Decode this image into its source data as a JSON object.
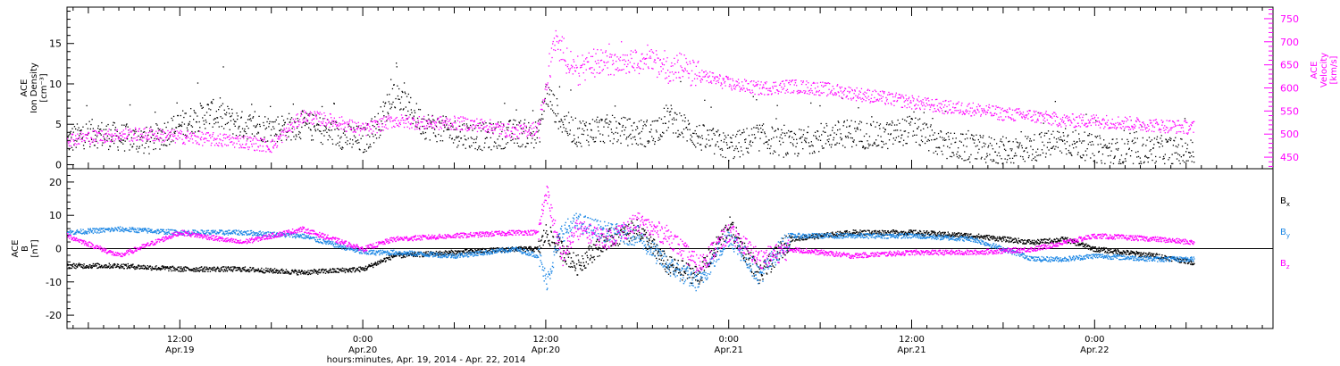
{
  "colors": {
    "black": "#000000",
    "magenta": "#ff00ff",
    "blue": "#1e88e5",
    "bg": "#ffffff"
  },
  "xaxis": {
    "title": "hours:minutes, Apr. 19, 2014 - Apr. 22, 2014",
    "ticks": [
      {
        "hour": 12,
        "line1": "12:00",
        "line2": "Apr.19"
      },
      {
        "hour": 24,
        "line1": "0:00",
        "line2": "Apr.20"
      },
      {
        "hour": 36,
        "line1": "12:00",
        "line2": "Apr.20"
      },
      {
        "hour": 48,
        "line1": "0:00",
        "line2": "Apr.21"
      },
      {
        "hour": 60,
        "line1": "12:00",
        "line2": "Apr.21"
      },
      {
        "hour": 72,
        "line1": "0:00",
        "line2": "Apr.22"
      }
    ]
  },
  "chart_data": [
    {
      "type": "scatter",
      "panel": "top",
      "xrange_hours": [
        4.6,
        83.7
      ],
      "left_axis": {
        "label_lines": [
          "ACE",
          "Ion Density",
          "[cm⁻³]"
        ],
        "ylim": [
          -0.5,
          19.5
        ],
        "ticks": [
          "0",
          "5",
          "10",
          "15"
        ],
        "tick_values": [
          0,
          5,
          10,
          15
        ]
      },
      "right_axis": {
        "label_lines": [
          "ACE",
          "Velocity",
          "[km/s]"
        ],
        "ylim": [
          425,
          775
        ],
        "ticks": [
          "450",
          "500",
          "550",
          "600",
          "650",
          "700",
          "750"
        ],
        "tick_values": [
          450,
          500,
          550,
          600,
          650,
          700,
          750
        ]
      },
      "series": [
        {
          "color": "black",
          "x_hours": [
            4.6,
            6,
            8,
            10,
            12,
            14,
            16,
            18,
            20,
            22,
            24,
            25,
            26,
            28,
            30,
            32,
            34,
            35.5,
            36,
            37,
            38,
            40,
            42,
            43,
            44,
            46,
            48,
            50,
            52,
            54,
            56,
            58,
            60,
            62,
            64,
            66,
            68,
            70,
            72,
            74,
            76,
            78.5
          ],
          "values": [
            3,
            4,
            3.5,
            3,
            5,
            6.5,
            5,
            4.5,
            5,
            4,
            3,
            5,
            9,
            5,
            4,
            3.5,
            4,
            3.8,
            9,
            5.5,
            4,
            4.5,
            4,
            4,
            6,
            3.5,
            2.2,
            3.5,
            2.5,
            3.5,
            4,
            3.5,
            4.5,
            2.5,
            2,
            1.8,
            2.2,
            3,
            2,
            1.5,
            2,
            1.5
          ]
        },
        {
          "color": "magenta",
          "x_hours": [
            4.6,
            8,
            10,
            12,
            14,
            16,
            18,
            20,
            22,
            24,
            26,
            28,
            30,
            32,
            34,
            35.5,
            36,
            36.5,
            38,
            40,
            42,
            43,
            44,
            45,
            46,
            48,
            50,
            52,
            54,
            56,
            58,
            60,
            62,
            64,
            66,
            68,
            70,
            72,
            74,
            76,
            78.5
          ],
          "values": [
            490,
            500,
            500,
            495,
            490,
            485,
            475,
            540,
            530,
            510,
            530,
            525,
            525,
            520,
            505,
            515,
            600,
            700,
            640,
            660,
            665,
            660,
            645,
            640,
            630,
            610,
            600,
            605,
            600,
            590,
            580,
            570,
            560,
            555,
            545,
            540,
            530,
            530,
            525,
            520,
            515
          ]
        }
      ]
    },
    {
      "type": "scatter",
      "panel": "bottom",
      "xrange_hours": [
        4.6,
        83.7
      ],
      "left_axis": {
        "label_lines": [
          "ACE",
          "B",
          "[nT]"
        ],
        "ylim": [
          -24,
          24
        ],
        "ticks": [
          "-20",
          "-10",
          "0",
          "10",
          "20"
        ],
        "tick_values": [
          -20,
          -10,
          0,
          10,
          20
        ]
      },
      "legend": [
        {
          "name": "Bx",
          "base": "B",
          "sub": "x",
          "color": "black"
        },
        {
          "name": "By",
          "base": "B",
          "sub": "y",
          "color": "blue"
        },
        {
          "name": "Bz",
          "base": "B",
          "sub": "z",
          "color": "magenta"
        }
      ],
      "zero_line": 0,
      "series": [
        {
          "name": "Bx",
          "color": "black",
          "x_hours": [
            4.6,
            8,
            12,
            16,
            20,
            24,
            26,
            30,
            34,
            35.5,
            36,
            38,
            40,
            42,
            44,
            46,
            48,
            50,
            52,
            56,
            60,
            64,
            68,
            70,
            72,
            76,
            78.5
          ],
          "values": [
            -5,
            -5,
            -6,
            -6,
            -7,
            -6,
            -2,
            -1,
            0,
            0,
            5,
            -5,
            3,
            6,
            -5,
            -8,
            7,
            -8,
            3,
            5,
            5,
            4,
            2,
            3,
            0,
            -2,
            -4
          ]
        },
        {
          "name": "By",
          "color": "blue",
          "x_hours": [
            4.6,
            8,
            12,
            16,
            20,
            24,
            26,
            30,
            34,
            35.5,
            36,
            37,
            38,
            40,
            42,
            44,
            46,
            48,
            50,
            52,
            56,
            60,
            64,
            68,
            70,
            72,
            76,
            78.5
          ],
          "values": [
            5,
            6,
            5,
            5,
            4,
            -1,
            -1,
            -2,
            0,
            -2,
            -10,
            5,
            8,
            5,
            4,
            -5,
            -10,
            4,
            -8,
            4,
            4,
            4,
            3,
            -3,
            -3,
            -2,
            -3,
            -3
          ]
        },
        {
          "name": "Bz",
          "color": "magenta",
          "x_hours": [
            4.6,
            8,
            12,
            16,
            20,
            24,
            26,
            30,
            34,
            35.5,
            36,
            37,
            38,
            40,
            42,
            44,
            46,
            48,
            50,
            52,
            56,
            60,
            64,
            68,
            70,
            72,
            76,
            78.5
          ],
          "values": [
            4,
            -2,
            5,
            2,
            6,
            0,
            3,
            4,
            5,
            5,
            18,
            -3,
            6,
            3,
            8,
            4,
            -5,
            5,
            -3,
            0,
            -2,
            -1,
            -1,
            0,
            2,
            4,
            3,
            2
          ]
        }
      ]
    }
  ]
}
